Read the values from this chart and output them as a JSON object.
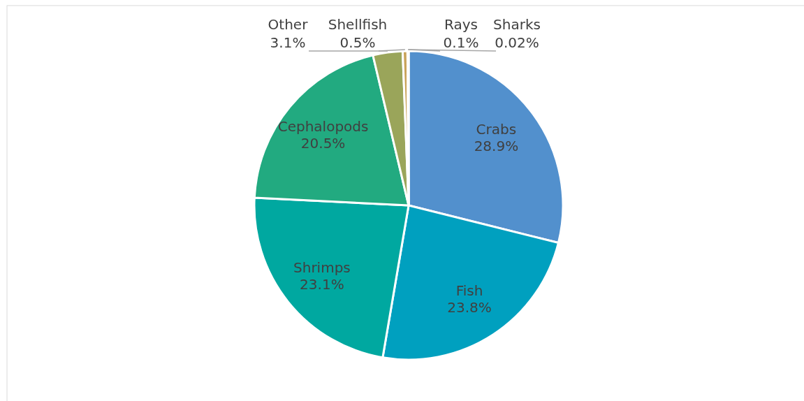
{
  "chart_data": {
    "type": "pie",
    "categories": [
      "Crabs",
      "Fish",
      "Shrimps",
      "Cephalopods",
      "Other",
      "Shellfish",
      "Rays",
      "Sharks"
    ],
    "values": [
      28.9,
      23.8,
      23.1,
      20.5,
      3.1,
      0.5,
      0.1,
      0.02
    ],
    "colors": [
      "#5290cd",
      "#00a0bf",
      "#00a8a0",
      "#22aa80",
      "#9aa55a",
      "#c9a35a",
      "#7f8f9f",
      "#4f6f8f"
    ],
    "value_labels": [
      "28.9%",
      "23.8%",
      "23.1%",
      "20.5%",
      "3.1%",
      "0.5%",
      "0.1%",
      "0.02%"
    ]
  }
}
